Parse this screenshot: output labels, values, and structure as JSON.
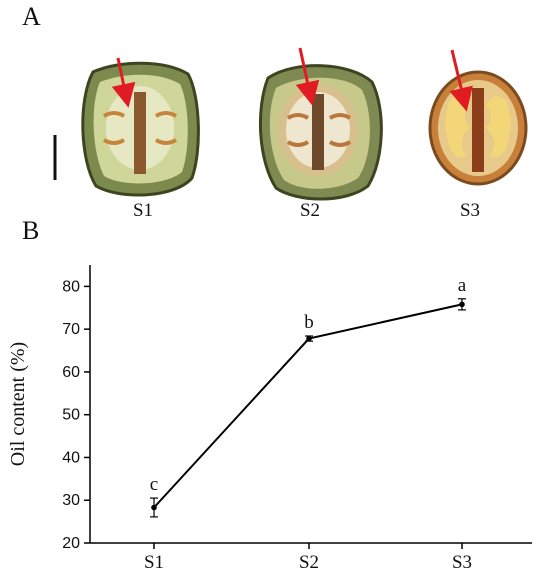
{
  "panels": {
    "a": "A",
    "b": "B"
  },
  "samples": [
    "S1",
    "S2",
    "S3"
  ],
  "colors": {
    "arrow": "#e01b22",
    "line": "#000000"
  },
  "chart_data": {
    "type": "line",
    "categories": [
      "S1",
      "S2",
      "S3"
    ],
    "series": [
      {
        "values": [
          28.3,
          67.8,
          75.8
        ],
        "errors": [
          2.2,
          0.6,
          1.3
        ]
      }
    ],
    "significance_labels": [
      "c",
      "b",
      "a"
    ],
    "ylabel": "Oil content (%)",
    "xlabel": "",
    "ylim": [
      20,
      85
    ],
    "yticks": [
      20,
      30,
      40,
      50,
      60,
      70,
      80
    ],
    "grid": false
  }
}
